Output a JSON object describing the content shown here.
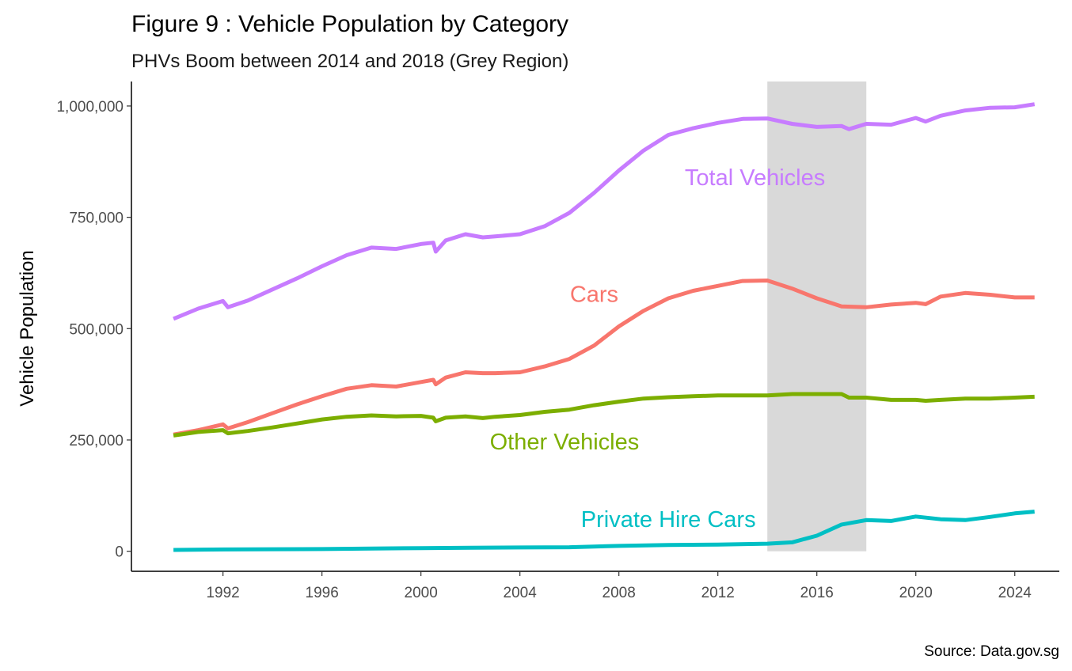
{
  "chart_data": {
    "type": "line",
    "title": "Figure 9 : Vehicle Population by Category",
    "subtitle": "PHVs Boom between 2014 and 2018 (Grey Region)",
    "xlabel": "",
    "ylabel": "Vehicle Population",
    "caption": "Source: Data.gov.sg",
    "xlim": [
      1988.3,
      2025.8
    ],
    "ylim": [
      -45000,
      1055000
    ],
    "x_ticks": [
      1992,
      1996,
      2000,
      2004,
      2008,
      2012,
      2016,
      2020,
      2024
    ],
    "y_ticks": [
      0,
      250000,
      500000,
      750000,
      1000000
    ],
    "y_tick_labels": [
      "0",
      "250,000",
      "500,000",
      "750,000",
      "1,000,000"
    ],
    "highlight_region": {
      "x": [
        2014,
        2018
      ],
      "color": "#d9d9d9"
    },
    "grid": false,
    "series": [
      {
        "name": "Total Vehicles",
        "color": "#c77cff",
        "label_at": [
          2013.5,
          840000
        ],
        "points": [
          [
            1990,
            522000
          ],
          [
            1991,
            545000
          ],
          [
            1992,
            562000
          ],
          [
            1992.2,
            548000
          ],
          [
            1993,
            563000
          ],
          [
            1994,
            588000
          ],
          [
            1995,
            613000
          ],
          [
            1996,
            640000
          ],
          [
            1997,
            665000
          ],
          [
            1998,
            682000
          ],
          [
            1999,
            679000
          ],
          [
            2000,
            690000
          ],
          [
            2000.5,
            693000
          ],
          [
            2000.6,
            673000
          ],
          [
            2001,
            698000
          ],
          [
            2001.8,
            712000
          ],
          [
            2002.5,
            705000
          ],
          [
            2003,
            707000
          ],
          [
            2004,
            712000
          ],
          [
            2005,
            730000
          ],
          [
            2006,
            760000
          ],
          [
            2007,
            805000
          ],
          [
            2008,
            855000
          ],
          [
            2009,
            900000
          ],
          [
            2010,
            935000
          ],
          [
            2011,
            950000
          ],
          [
            2012,
            962000
          ],
          [
            2013,
            971000
          ],
          [
            2014,
            972000
          ],
          [
            2015,
            960000
          ],
          [
            2016,
            953000
          ],
          [
            2017,
            955000
          ],
          [
            2017.3,
            948000
          ],
          [
            2018,
            960000
          ],
          [
            2019,
            958000
          ],
          [
            2020,
            973000
          ],
          [
            2020.4,
            965000
          ],
          [
            2021,
            978000
          ],
          [
            2022,
            990000
          ],
          [
            2023,
            996000
          ],
          [
            2024,
            997000
          ],
          [
            2024.8,
            1004000
          ]
        ]
      },
      {
        "name": "Cars",
        "color": "#f8766d",
        "label_at": [
          2007,
          578000
        ],
        "points": [
          [
            1990,
            262000
          ],
          [
            1991,
            272000
          ],
          [
            1992,
            285000
          ],
          [
            1992.2,
            276000
          ],
          [
            1993,
            290000
          ],
          [
            1994,
            310000
          ],
          [
            1995,
            330000
          ],
          [
            1996,
            348000
          ],
          [
            1997,
            365000
          ],
          [
            1998,
            373000
          ],
          [
            1999,
            370000
          ],
          [
            2000,
            380000
          ],
          [
            2000.5,
            385000
          ],
          [
            2000.6,
            375000
          ],
          [
            2001,
            390000
          ],
          [
            2001.8,
            402000
          ],
          [
            2002.5,
            400000
          ],
          [
            2003,
            400000
          ],
          [
            2004,
            402000
          ],
          [
            2005,
            415000
          ],
          [
            2006,
            432000
          ],
          [
            2007,
            462000
          ],
          [
            2008,
            505000
          ],
          [
            2009,
            540000
          ],
          [
            2010,
            568000
          ],
          [
            2011,
            585000
          ],
          [
            2012,
            596000
          ],
          [
            2013,
            607000
          ],
          [
            2014,
            608000
          ],
          [
            2015,
            590000
          ],
          [
            2016,
            568000
          ],
          [
            2017,
            550000
          ],
          [
            2018,
            548000
          ],
          [
            2019,
            554000
          ],
          [
            2020,
            558000
          ],
          [
            2020.4,
            555000
          ],
          [
            2021,
            572000
          ],
          [
            2022,
            580000
          ],
          [
            2023,
            576000
          ],
          [
            2024,
            570000
          ],
          [
            2024.8,
            570000
          ]
        ]
      },
      {
        "name": "Other Vehicles",
        "color": "#7cae00",
        "label_at": [
          2005.8,
          246000
        ],
        "points": [
          [
            1990,
            260000
          ],
          [
            1991,
            268000
          ],
          [
            1992,
            272000
          ],
          [
            1992.2,
            265000
          ],
          [
            1993,
            270000
          ],
          [
            1994,
            278000
          ],
          [
            1995,
            287000
          ],
          [
            1996,
            296000
          ],
          [
            1997,
            302000
          ],
          [
            1998,
            305000
          ],
          [
            1999,
            303000
          ],
          [
            2000,
            304000
          ],
          [
            2000.5,
            300000
          ],
          [
            2000.6,
            292000
          ],
          [
            2001,
            300000
          ],
          [
            2001.8,
            303000
          ],
          [
            2002.5,
            299000
          ],
          [
            2003,
            302000
          ],
          [
            2004,
            306000
          ],
          [
            2005,
            313000
          ],
          [
            2006,
            318000
          ],
          [
            2007,
            328000
          ],
          [
            2008,
            336000
          ],
          [
            2009,
            343000
          ],
          [
            2010,
            346000
          ],
          [
            2011,
            348000
          ],
          [
            2012,
            350000
          ],
          [
            2013,
            350000
          ],
          [
            2014,
            350000
          ],
          [
            2015,
            353000
          ],
          [
            2016,
            353000
          ],
          [
            2017,
            353000
          ],
          [
            2017.3,
            345000
          ],
          [
            2018,
            345000
          ],
          [
            2019,
            340000
          ],
          [
            2020,
            340000
          ],
          [
            2020.4,
            338000
          ],
          [
            2021,
            340000
          ],
          [
            2022,
            343000
          ],
          [
            2023,
            343000
          ],
          [
            2024,
            345000
          ],
          [
            2024.8,
            347000
          ]
        ]
      },
      {
        "name": "Private Hire Cars",
        "color": "#00bfc4",
        "label_at": [
          2010,
          72000
        ],
        "points": [
          [
            1990,
            3000
          ],
          [
            1992,
            4000
          ],
          [
            1994,
            4500
          ],
          [
            1996,
            5000
          ],
          [
            1998,
            6000
          ],
          [
            2000,
            7000
          ],
          [
            2002,
            8000
          ],
          [
            2004,
            8500
          ],
          [
            2006,
            9000
          ],
          [
            2008,
            12000
          ],
          [
            2010,
            14000
          ],
          [
            2012,
            15000
          ],
          [
            2014,
            17000
          ],
          [
            2015,
            20000
          ],
          [
            2016,
            35000
          ],
          [
            2017,
            60000
          ],
          [
            2018,
            70000
          ],
          [
            2019,
            68000
          ],
          [
            2020,
            78000
          ],
          [
            2021,
            72000
          ],
          [
            2022,
            70000
          ],
          [
            2023,
            77000
          ],
          [
            2024,
            85000
          ],
          [
            2024.8,
            89000
          ]
        ]
      }
    ]
  }
}
